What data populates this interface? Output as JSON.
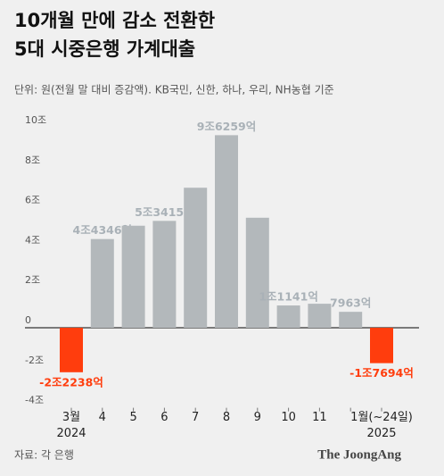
{
  "chart_data": {
    "type": "bar",
    "title": [
      "10개월 만에 감소 전환한",
      "5대 시중은행 가계대출"
    ],
    "subtitle": "단위: 원(전월 말 대비 증감액). KB국민, 신한, 하나, 우리, NH농협 기준",
    "categories": [
      "3월",
      "4",
      "5",
      "6",
      "7",
      "8",
      "9",
      "10",
      "11",
      null,
      "1월(~24일)"
    ],
    "year_labels": [
      "2024",
      "2025"
    ],
    "values": [
      -2.2238,
      4.4346,
      5.1,
      5.3415,
      7.0,
      9.6259,
      5.5,
      1.1141,
      1.2,
      0.7963,
      -1.7694
    ],
    "value_labels": [
      "-2조2238억",
      "4조4346억",
      null,
      "5조3415억",
      null,
      "9조6259억",
      null,
      "1조1141억",
      null,
      "7963억",
      "-1조7694억"
    ],
    "color": "#b3b8bb",
    "negative_color": "#ff3d0d",
    "ylim": [
      -4,
      10
    ],
    "yticks": [
      {
        "value": -4,
        "label": "-4조"
      },
      {
        "value": -2,
        "label": "-2조"
      },
      0,
      {
        "value": 2,
        "label": "2조"
      },
      {
        "value": 4,
        "label": "4조"
      },
      {
        "value": 6,
        "label": "6조"
      },
      {
        "value": 8,
        "label": "8조"
      },
      {
        "value": 10,
        "label": "10조"
      }
    ],
    "grid": false,
    "source": "자료: 각 은행",
    "brand": "The JoongAng"
  }
}
